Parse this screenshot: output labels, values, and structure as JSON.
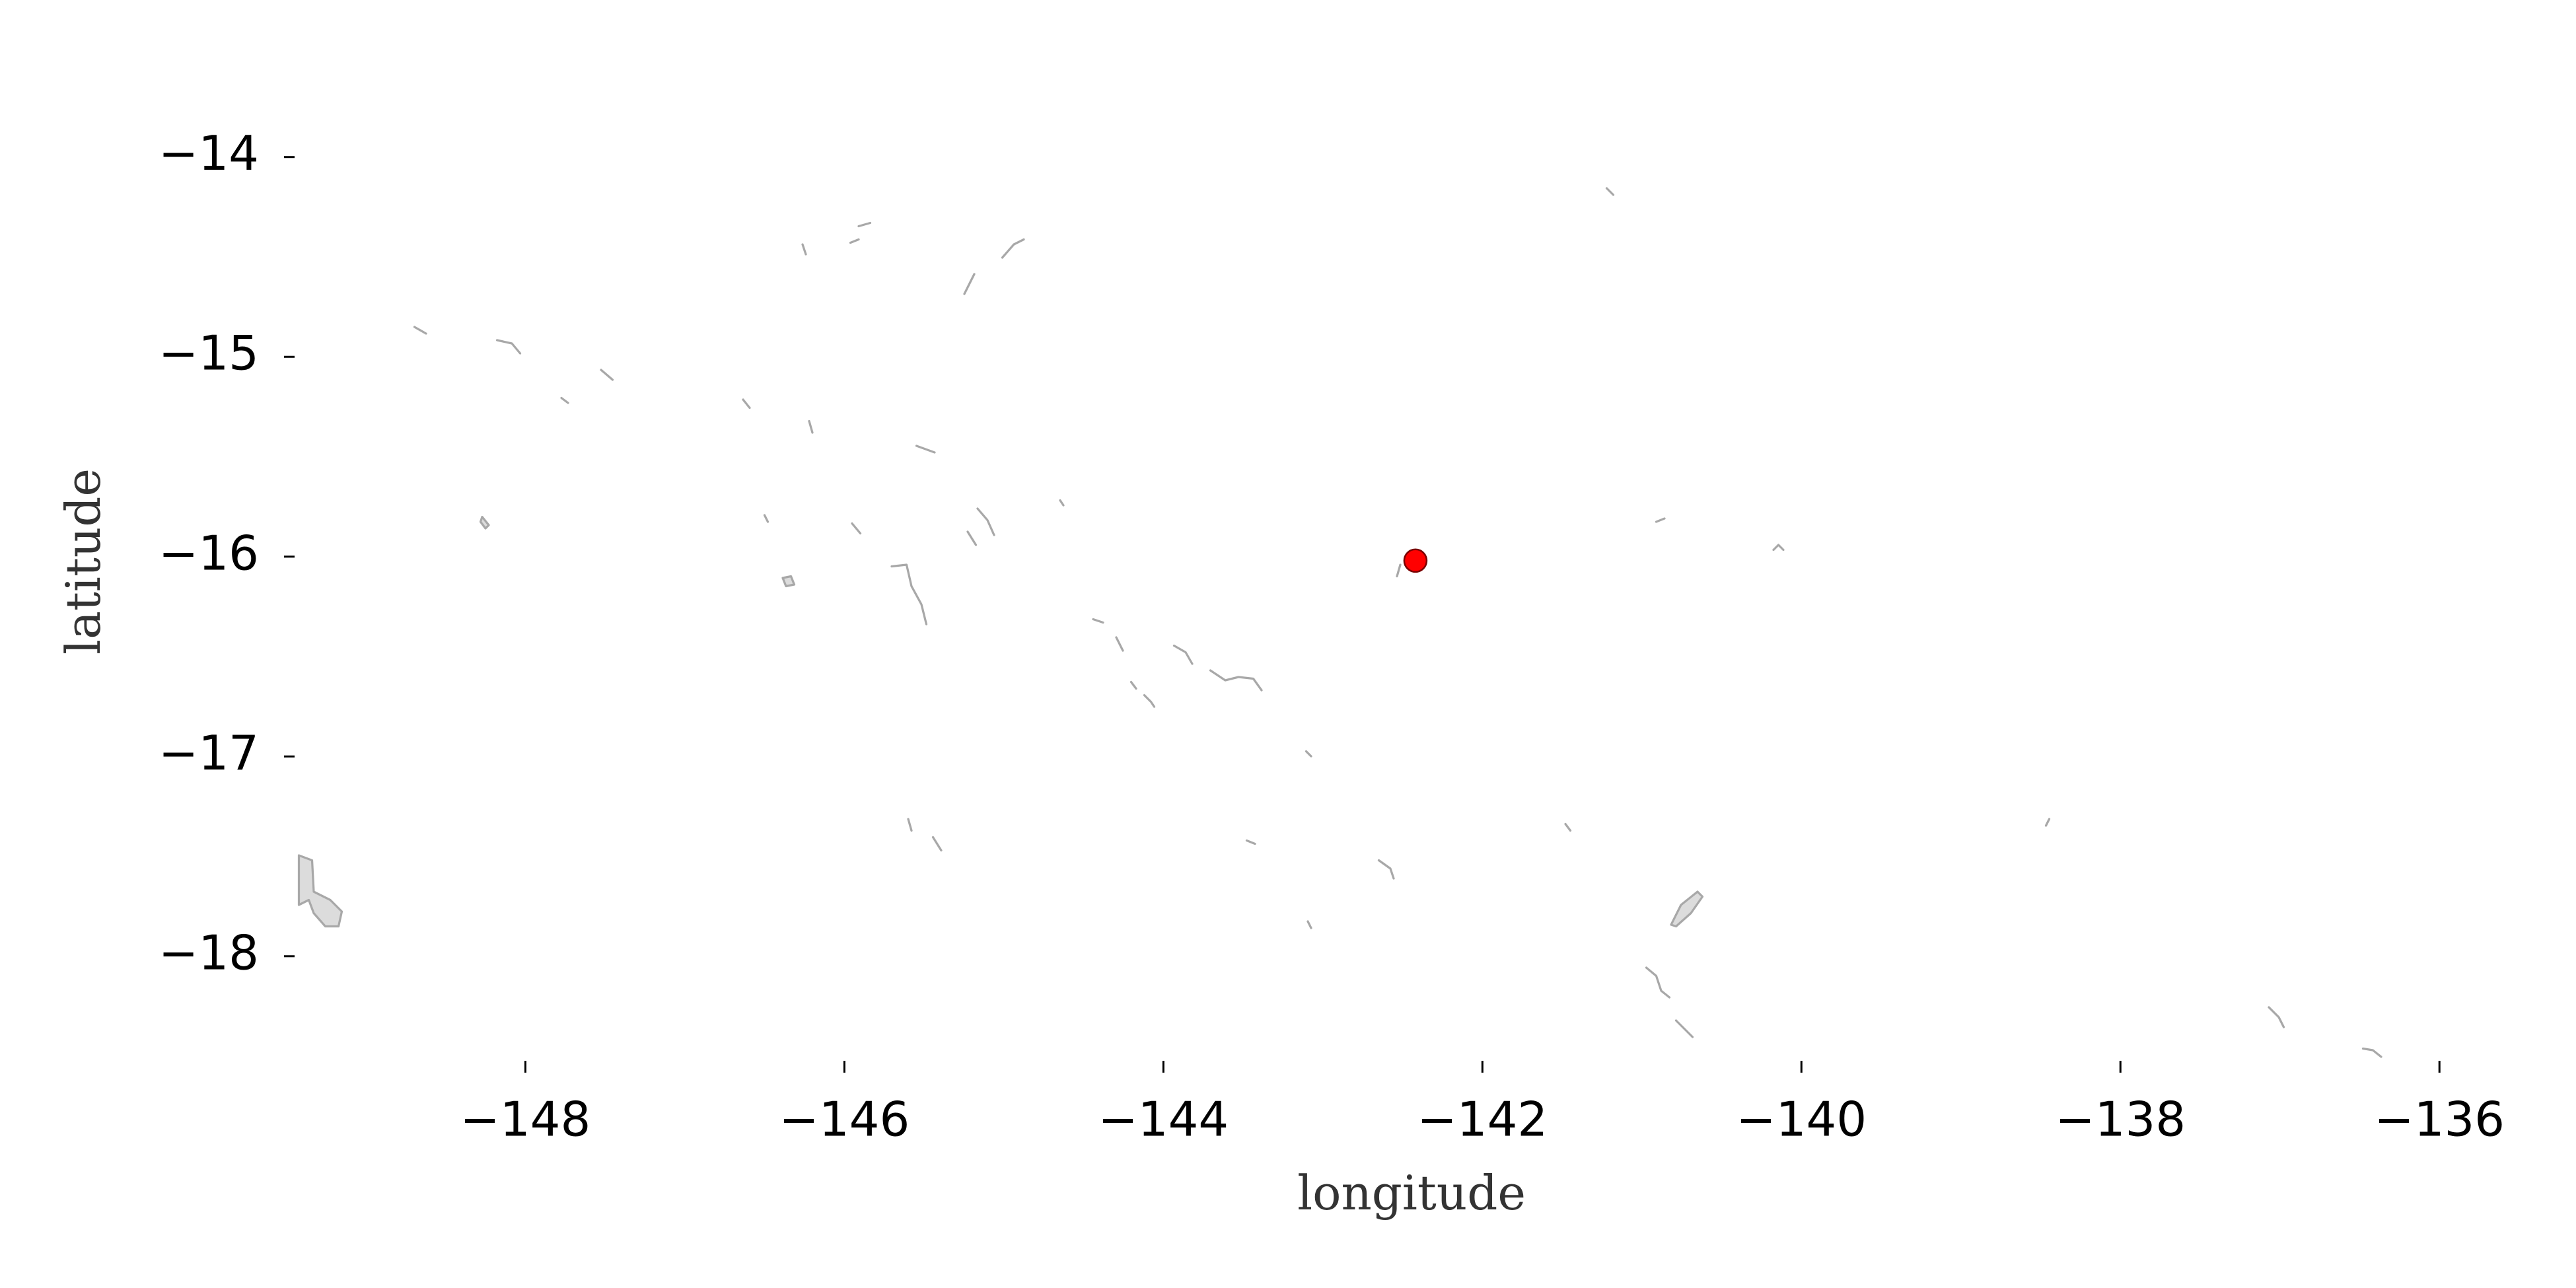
{
  "chart_data": {
    "type": "scatter",
    "x": [
      -142.42
    ],
    "values": [
      -16.02
    ],
    "color": "#ff0000",
    "xlabel": "longitude",
    "ylabel": "latitude",
    "xlim": [
      -149.42,
      -135.5
    ],
    "ylim": [
      -13.71,
      -18.5
    ],
    "xticks": [
      {
        "value": -148,
        "label": "−148"
      },
      {
        "value": -146,
        "label": "−146"
      },
      {
        "value": -144,
        "label": "−144"
      },
      {
        "value": -142,
        "label": "−142"
      },
      {
        "value": -140,
        "label": "−140"
      },
      {
        "value": -138,
        "label": "−138"
      },
      {
        "value": -136,
        "label": "−136"
      }
    ],
    "yticks": [
      {
        "value": -14,
        "label": "−14"
      },
      {
        "value": -15,
        "label": "−15"
      },
      {
        "value": -16,
        "label": "−16"
      },
      {
        "value": -17,
        "label": "−17"
      },
      {
        "value": -18,
        "label": "−18"
      }
    ]
  }
}
